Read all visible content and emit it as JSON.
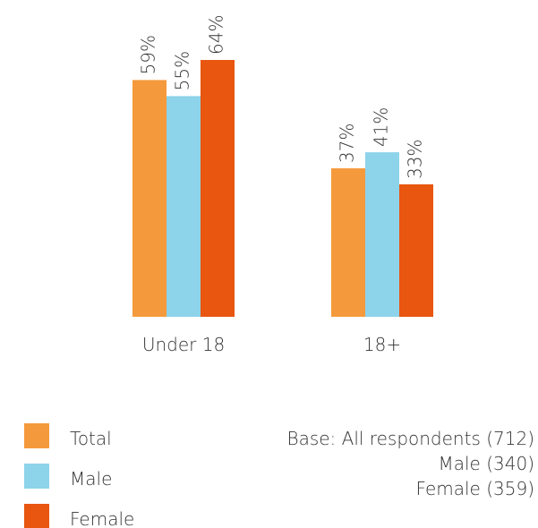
{
  "chart_data": {
    "type": "bar",
    "categories": [
      "Under 18",
      "18+"
    ],
    "series": [
      {
        "name": "Total",
        "color": "#f59a3c",
        "values": [
          59,
          37
        ],
        "value_labels": [
          "59%",
          "37%"
        ]
      },
      {
        "name": "Male",
        "color": "#8dd3ea",
        "values": [
          55,
          41
        ],
        "value_labels": [
          "55%",
          "41%"
        ]
      },
      {
        "name": "Female",
        "color": "#e8560f",
        "values": [
          64,
          33
        ],
        "value_labels": [
          "64%",
          "33%"
        ]
      }
    ],
    "note": [
      "Base: All respondents (712)",
      "Male (340)",
      "Female (359)"
    ]
  }
}
